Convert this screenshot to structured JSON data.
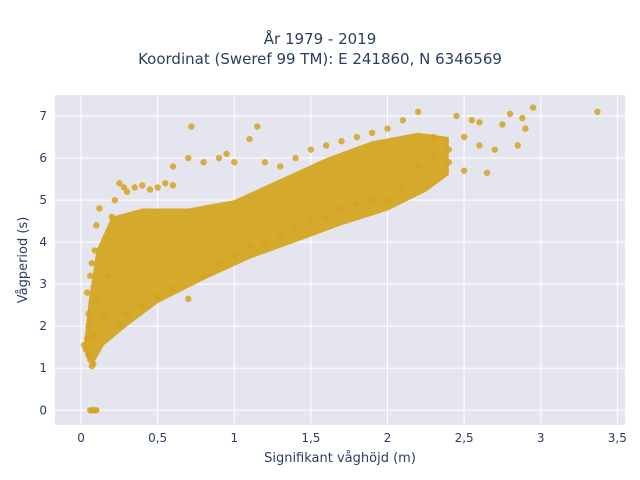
{
  "chart_data": {
    "type": "scatter",
    "title_line1": "År 1979 - 2019",
    "title_line2": "Koordinat (Sweref 99 TM): E 241860, N 6346569",
    "xlabel": "Signifikant våghöjd (m)",
    "ylabel": "Vågperiod (s)",
    "xlim": [
      -0.17,
      3.55
    ],
    "ylim": [
      -0.35,
      7.5
    ],
    "x_ticks": [
      0,
      0.5,
      1,
      1.5,
      2,
      2.5,
      3,
      3.5
    ],
    "x_tick_labels": [
      "0",
      "0,5",
      "1",
      "1,5",
      "2",
      "2,5",
      "3",
      "3,5"
    ],
    "y_ticks": [
      0,
      1,
      2,
      3,
      4,
      5,
      6,
      7
    ],
    "y_tick_labels": [
      "0",
      "1",
      "2",
      "3",
      "4",
      "5",
      "6",
      "7"
    ],
    "grid": true,
    "marker_color": "#d4a520",
    "plot_background": "#e5e5f0",
    "points": [
      [
        0.02,
        1.55
      ],
      [
        0.03,
        1.45
      ],
      [
        0.04,
        1.7
      ],
      [
        0.05,
        1.3
      ],
      [
        0.06,
        1.2
      ],
      [
        0.07,
        1.05
      ],
      [
        0.08,
        1.1
      ],
      [
        0.05,
        2.3
      ],
      [
        0.04,
        2.8
      ],
      [
        0.06,
        3.2
      ],
      [
        0.07,
        3.5
      ],
      [
        0.05,
        2.0
      ],
      [
        0.08,
        1.8
      ],
      [
        0.1,
        2.6
      ],
      [
        0.09,
        3.8
      ],
      [
        0.1,
        4.4
      ],
      [
        0.12,
        4.8
      ],
      [
        0.15,
        2.2
      ],
      [
        0.18,
        3.2
      ],
      [
        0.2,
        4.6
      ],
      [
        0.22,
        5.0
      ],
      [
        0.25,
        5.4
      ],
      [
        0.28,
        5.3
      ],
      [
        0.3,
        5.2
      ],
      [
        0.35,
        5.3
      ],
      [
        0.4,
        5.35
      ],
      [
        0.45,
        5.25
      ],
      [
        0.5,
        5.3
      ],
      [
        0.55,
        5.4
      ],
      [
        0.6,
        5.35
      ],
      [
        0.25,
        2.0
      ],
      [
        0.3,
        2.3
      ],
      [
        0.4,
        2.5
      ],
      [
        0.5,
        2.7
      ],
      [
        0.6,
        2.9
      ],
      [
        0.7,
        2.65
      ],
      [
        0.8,
        3.2
      ],
      [
        0.9,
        3.5
      ],
      [
        1.0,
        3.7
      ],
      [
        1.1,
        3.9
      ],
      [
        0.6,
        5.8
      ],
      [
        0.7,
        6.0
      ],
      [
        0.72,
        6.75
      ],
      [
        0.8,
        5.9
      ],
      [
        0.9,
        6.0
      ],
      [
        0.95,
        6.1
      ],
      [
        1.0,
        5.9
      ],
      [
        1.1,
        6.45
      ],
      [
        1.15,
        6.75
      ],
      [
        1.2,
        5.9
      ],
      [
        1.2,
        4.0
      ],
      [
        1.3,
        4.2
      ],
      [
        1.4,
        4.4
      ],
      [
        1.5,
        4.5
      ],
      [
        1.6,
        4.6
      ],
      [
        1.7,
        4.8
      ],
      [
        1.8,
        4.9
      ],
      [
        1.9,
        5.0
      ],
      [
        2.0,
        5.0
      ],
      [
        2.1,
        5.3
      ],
      [
        1.3,
        5.8
      ],
      [
        1.4,
        6.0
      ],
      [
        1.5,
        6.2
      ],
      [
        1.6,
        6.3
      ],
      [
        1.7,
        6.4
      ],
      [
        1.8,
        6.5
      ],
      [
        1.9,
        6.6
      ],
      [
        2.0,
        6.7
      ],
      [
        2.1,
        6.9
      ],
      [
        2.2,
        7.1
      ],
      [
        2.2,
        5.8
      ],
      [
        2.3,
        6.0
      ],
      [
        2.4,
        6.2
      ],
      [
        2.5,
        6.5
      ],
      [
        2.55,
        6.9
      ],
      [
        2.6,
        6.3
      ],
      [
        2.65,
        5.65
      ],
      [
        2.7,
        6.2
      ],
      [
        2.75,
        6.8
      ],
      [
        2.8,
        7.05
      ],
      [
        2.85,
        6.3
      ],
      [
        2.88,
        6.95
      ],
      [
        2.9,
        6.7
      ],
      [
        2.95,
        7.2
      ],
      [
        3.37,
        7.1
      ],
      [
        2.5,
        5.7
      ],
      [
        2.4,
        5.9
      ],
      [
        2.3,
        6.5
      ],
      [
        2.45,
        7.0
      ],
      [
        2.6,
        6.85
      ],
      [
        0.06,
        0.0
      ],
      [
        0.07,
        0.0
      ],
      [
        0.08,
        0.0
      ],
      [
        0.09,
        0.0
      ],
      [
        0.1,
        0.0
      ]
    ]
  }
}
